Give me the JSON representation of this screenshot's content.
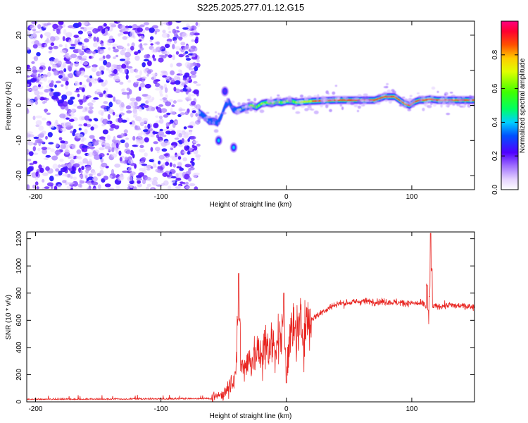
{
  "title": "S225.2025.277.01.12.G15",
  "colorbar": {
    "label": "Normalized spectral amplitude",
    "ticks": [
      0.0,
      0.2,
      0.4,
      0.6,
      0.8
    ],
    "tick_labels": [
      "0.0",
      "0.2",
      "0.4",
      "0.6",
      "0.8"
    ]
  },
  "chart_data": [
    {
      "type": "heatmap",
      "title": "S225.2025.277.01.12.G15",
      "xlabel": "Height of straight line (km)",
      "ylabel": "Frequency (Hz)",
      "xlim": [
        -207,
        150
      ],
      "ylim": [
        -24,
        24
      ],
      "xticks": [
        -200,
        -100,
        0,
        100
      ],
      "xtick_labels": [
        "-200",
        "-100",
        "0",
        "100"
      ],
      "yticks": [
        -20,
        -10,
        0,
        10,
        20
      ],
      "ytick_labels": [
        "-20",
        "-10",
        "0",
        "10",
        "20"
      ],
      "colorscale": "rainbow",
      "noise_region_x": [
        -207,
        -70
      ],
      "ridge": [
        [
          -70,
          -2
        ],
        [
          -66,
          -3
        ],
        [
          -62,
          -4.5
        ],
        [
          -58,
          -4.5
        ],
        [
          -55,
          -5
        ],
        [
          -52,
          -3
        ],
        [
          -49,
          0
        ],
        [
          -46,
          1
        ],
        [
          -43,
          -1
        ],
        [
          -40,
          -1.5
        ],
        [
          -36,
          -1
        ],
        [
          -32,
          -0.5
        ],
        [
          -28,
          0
        ],
        [
          -24,
          -0.5
        ],
        [
          -20,
          0.5
        ],
        [
          -16,
          0.8
        ],
        [
          -12,
          0.5
        ],
        [
          -8,
          1
        ],
        [
          -4,
          0.8
        ],
        [
          0,
          1.2
        ],
        [
          4,
          1.2
        ],
        [
          8,
          0.8
        ],
        [
          12,
          1
        ],
        [
          20,
          1.2
        ],
        [
          40,
          1.5
        ],
        [
          60,
          1.5
        ],
        [
          70,
          1.5
        ],
        [
          78,
          2.5
        ],
        [
          82,
          2.5
        ],
        [
          86,
          2.5
        ],
        [
          90,
          1.5
        ],
        [
          94,
          0.5
        ],
        [
          98,
          0
        ],
        [
          102,
          1
        ],
        [
          106,
          1.5
        ],
        [
          110,
          1.5
        ],
        [
          114,
          1.8
        ],
        [
          120,
          1.5
        ],
        [
          130,
          1.5
        ],
        [
          140,
          1.5
        ],
        [
          150,
          1.5
        ]
      ],
      "blobs": [
        {
          "x": -54,
          "y": -10,
          "amp": 0.35
        },
        {
          "x": -42,
          "y": -12,
          "amp": 0.35
        },
        {
          "x": -49,
          "y": 4,
          "amp": 0.15
        }
      ]
    },
    {
      "type": "line",
      "xlabel": "Height of straight line (km)",
      "ylabel": "SNR (10 * v/v)",
      "xlim": [
        -207,
        150
      ],
      "ylim": [
        0,
        1250
      ],
      "xticks": [
        -200,
        -100,
        0,
        100
      ],
      "xtick_labels": [
        "-200",
        "-100",
        "0",
        "100"
      ],
      "yticks": [
        0,
        200,
        400,
        600,
        800,
        1000,
        1200
      ],
      "ytick_labels": [
        "0",
        "200",
        "400",
        "600",
        "800",
        "1000",
        "1200"
      ],
      "series": [
        {
          "name": "SNR",
          "color": "#e8231f",
          "envelope_x": [
            -207,
            -100,
            -70,
            -60,
            -50,
            -45,
            -40,
            -30,
            -20,
            -10,
            0,
            10,
            20,
            30,
            40,
            60,
            80,
            100,
            110,
            112,
            114,
            116,
            130,
            150
          ],
          "envelope_y": [
            15,
            18,
            20,
            20,
            60,
            130,
            230,
            300,
            360,
            430,
            470,
            520,
            610,
            670,
            720,
            740,
            735,
            725,
            720,
            680,
            600,
            700,
            710,
            700
          ],
          "spikes": [
            {
              "x": -38,
              "y": 945
            },
            {
              "x": -2,
              "y": 800
            },
            {
              "x": 0,
              "y": 140
            },
            {
              "x": 113,
              "y": 1040
            },
            {
              "x": 114,
              "y": 310
            },
            {
              "x": 115,
              "y": 1240
            }
          ]
        }
      ]
    }
  ]
}
